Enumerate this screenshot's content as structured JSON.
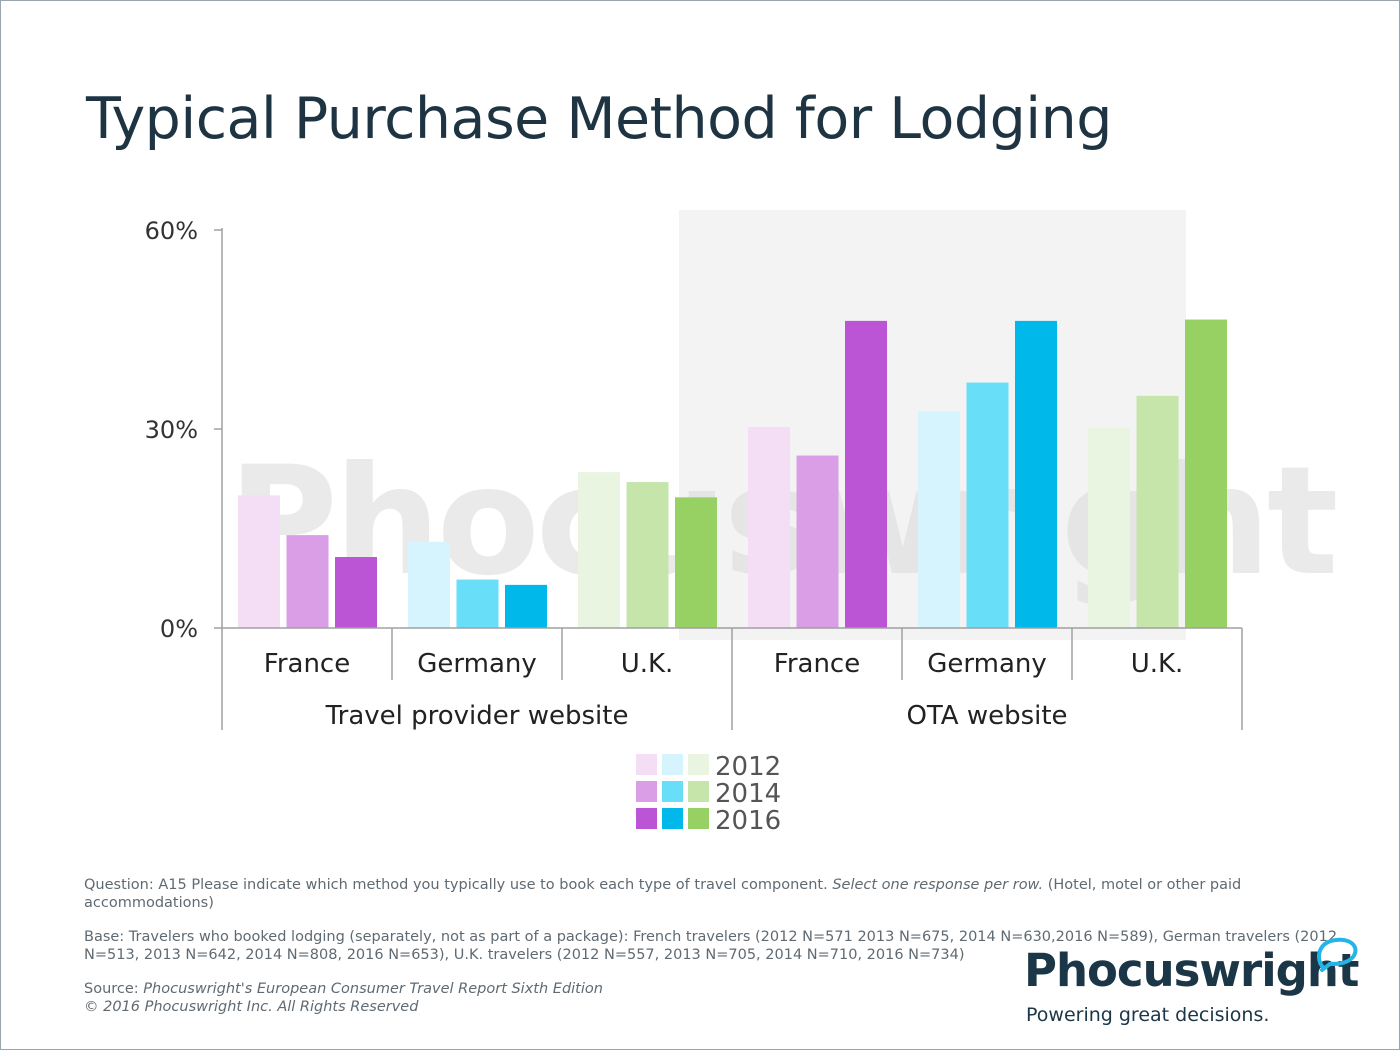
{
  "title": "Typical Purchase Method for Lodging",
  "chart_data": {
    "type": "bar",
    "ylim": [
      0,
      60
    ],
    "yticks": [
      "0%",
      "30%",
      "60%"
    ],
    "groups": [
      {
        "label": "Travel provider website",
        "categories": [
          "France",
          "Germany",
          "U.K."
        ]
      },
      {
        "label": "OTA website",
        "categories": [
          "France",
          "Germany",
          "U.K."
        ]
      }
    ],
    "series": [
      {
        "name": "2012",
        "values": [
          20,
          13,
          23.5,
          30.3,
          32.7,
          30.2
        ]
      },
      {
        "name": "2014",
        "values": [
          14,
          7.3,
          22,
          26,
          37,
          35
        ]
      },
      {
        "name": "2016",
        "values": [
          10.7,
          6.5,
          19.7,
          46.3,
          46.3,
          46.5
        ]
      }
    ],
    "colors": {
      "2012": [
        "#f3def5",
        "#d6f4fd",
        "#e9f5e1"
      ],
      "2014": [
        "#d99ee6",
        "#68def9",
        "#c5e5aa"
      ],
      "2016": [
        "#bb55d6",
        "#00b8ea",
        "#98d163"
      ]
    },
    "legend": {
      "entries": [
        "2012",
        "2014",
        "2016"
      ],
      "placement": "bottom-center"
    },
    "watermark": "Phocuswright",
    "grid": false
  },
  "notes": {
    "question_prefix": "Question: A15 Please indicate which method you typically use to book each type of travel component. ",
    "question_italic": "Select one response per row.",
    "question_suffix": " (Hotel, motel or other paid accommodations)",
    "base": "Base: Travelers who booked lodging (separately, not as part of a package): French travelers (2012 N=571 2013 N=675, 2014 N=630,2016 N=589), German travelers (2012 N=513, 2013 N=642, 2014 N=808, 2016 N=653), U.K. travelers (2012 N=557, 2013 N=705, 2014 N=710, 2016 N=734)",
    "source_prefix": "Source: ",
    "source_italic": "Phocuswright's European Consumer Travel Report Sixth Edition",
    "copyright": "© 2016 Phocuswright Inc. All Rights Reserved"
  },
  "logo": {
    "wordmark": "Phocuswright",
    "tagline": "Powering great decisions."
  }
}
